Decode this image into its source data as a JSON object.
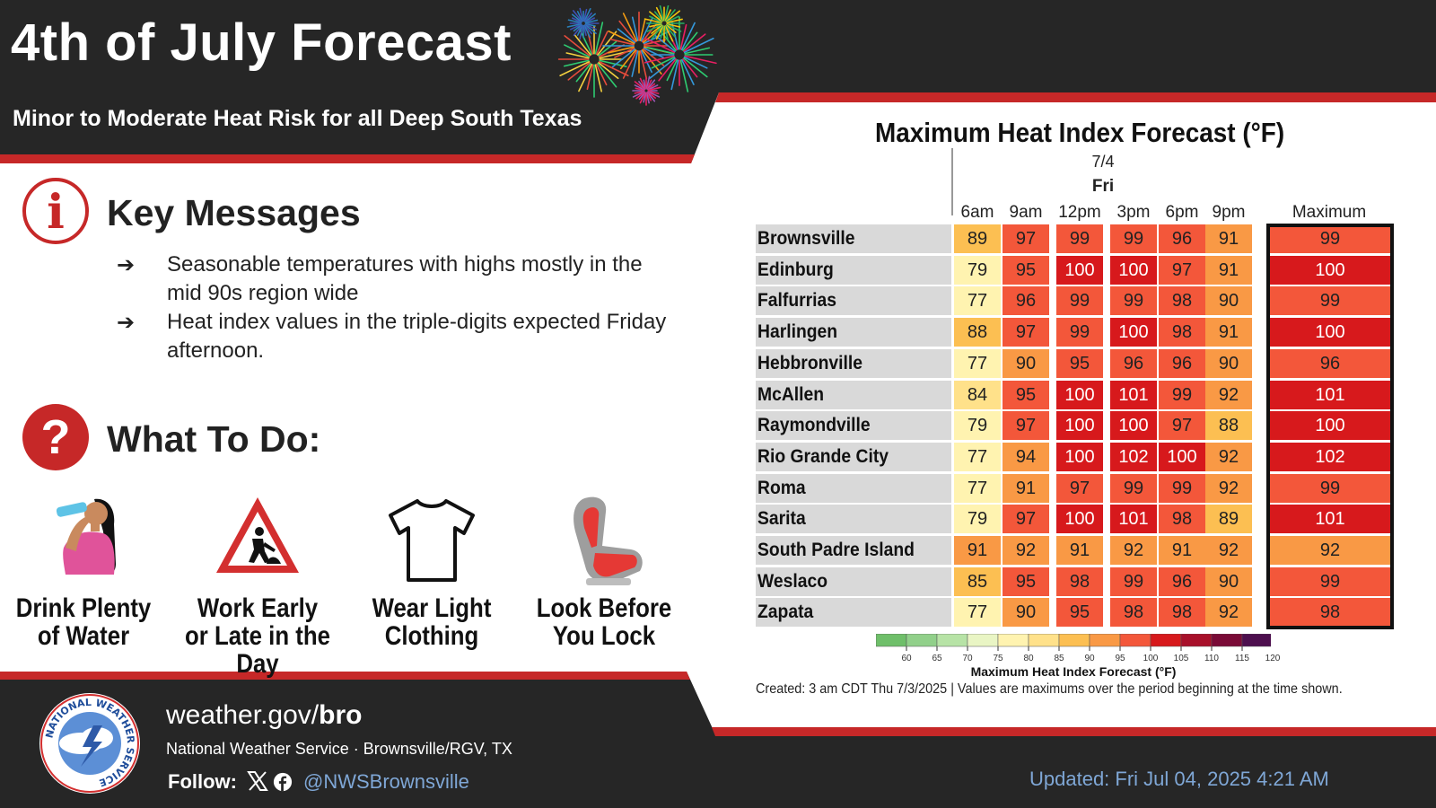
{
  "header": {
    "title": "4th of July Forecast",
    "subtitle": "Minor to Moderate Heat Risk for all Deep South Texas"
  },
  "key_messages": {
    "title": "Key Messages",
    "icon": "info-icon",
    "items": [
      "Seasonable temperatures with highs mostly in the mid 90s region wide",
      "Heat index values in the triple-digits expected Friday afternoon."
    ]
  },
  "what_to_do": {
    "title": "What To Do:",
    "icon": "question-icon",
    "tips": [
      {
        "label": "Drink Plenty of Water",
        "icon": "drinking-water-icon"
      },
      {
        "label": "Work Early or Late in the Day",
        "icon": "construction-sign-icon"
      },
      {
        "label": "Wear Light Clothing",
        "icon": "t-shirt-icon"
      },
      {
        "label": "Look Before You Lock",
        "icon": "car-seat-icon"
      }
    ]
  },
  "footer": {
    "site_prefix": "weather.gov/",
    "site_suffix": "bro",
    "office": "National Weather Service · Brownsville/RGV, TX",
    "follow": "Follow:",
    "handle": "@NWSBrownsville",
    "updated": "Updated: Fri Jul 04, 2025 4:21 AM",
    "logo": "nws-logo",
    "logo_ring_text": "NATIONAL WEATHER SERVICE"
  },
  "chart_data": {
    "type": "table",
    "title": "Maximum Heat Index Forecast (°F)",
    "date": "7/4",
    "day": "Fri",
    "columns": [
      "6am",
      "9am",
      "12pm",
      "3pm",
      "6pm",
      "9pm"
    ],
    "max_label": "Maximum",
    "rows": [
      {
        "city": "Brownsville",
        "values": [
          89,
          97,
          99,
          99,
          96,
          91
        ],
        "max": 99
      },
      {
        "city": "Edinburg",
        "values": [
          79,
          95,
          100,
          100,
          97,
          91
        ],
        "max": 100
      },
      {
        "city": "Falfurrias",
        "values": [
          77,
          96,
          99,
          99,
          98,
          90
        ],
        "max": 99
      },
      {
        "city": "Harlingen",
        "values": [
          88,
          97,
          99,
          100,
          98,
          91
        ],
        "max": 100
      },
      {
        "city": "Hebbronville",
        "values": [
          77,
          90,
          95,
          96,
          96,
          90
        ],
        "max": 96
      },
      {
        "city": "McAllen",
        "values": [
          84,
          95,
          100,
          101,
          99,
          92
        ],
        "max": 101
      },
      {
        "city": "Raymondville",
        "values": [
          79,
          97,
          100,
          100,
          97,
          88
        ],
        "max": 100
      },
      {
        "city": "Rio Grande City",
        "values": [
          77,
          94,
          100,
          102,
          100,
          92
        ],
        "max": 102
      },
      {
        "city": "Roma",
        "values": [
          77,
          91,
          97,
          99,
          99,
          92
        ],
        "max": 99
      },
      {
        "city": "Sarita",
        "values": [
          79,
          97,
          100,
          101,
          98,
          89
        ],
        "max": 101
      },
      {
        "city": "South Padre Island",
        "values": [
          91,
          92,
          91,
          92,
          91,
          92
        ],
        "max": 92
      },
      {
        "city": "Weslaco",
        "values": [
          85,
          95,
          98,
          99,
          96,
          90
        ],
        "max": 99
      },
      {
        "city": "Zapata",
        "values": [
          77,
          90,
          95,
          98,
          98,
          92
        ],
        "max": 98
      }
    ],
    "color_scale": {
      "label": "Maximum Heat Index Forecast (°F)",
      "ticks": [
        60,
        65,
        70,
        75,
        80,
        85,
        90,
        95,
        100,
        105,
        110,
        115,
        120
      ],
      "bins": [
        {
          "from": 55,
          "color": "#6fbf6a"
        },
        {
          "from": 60,
          "color": "#91d08a"
        },
        {
          "from": 65,
          "color": "#b7e3a6"
        },
        {
          "from": 70,
          "color": "#e9f5c4"
        },
        {
          "from": 75,
          "color": "#fff3b0"
        },
        {
          "from": 80,
          "color": "#ffe18a"
        },
        {
          "from": 85,
          "color": "#fcbf52"
        },
        {
          "from": 90,
          "color": "#f99945"
        },
        {
          "from": 95,
          "color": "#f3573a"
        },
        {
          "from": 100,
          "color": "#d7191c"
        },
        {
          "from": 105,
          "color": "#a8102a"
        },
        {
          "from": 110,
          "color": "#7a0b37"
        },
        {
          "from": 115,
          "color": "#4d0f4e"
        }
      ]
    },
    "note": "Created: 3 am CDT Thu 7/3/2025  |  Values are maximums over the period beginning at the time shown."
  }
}
